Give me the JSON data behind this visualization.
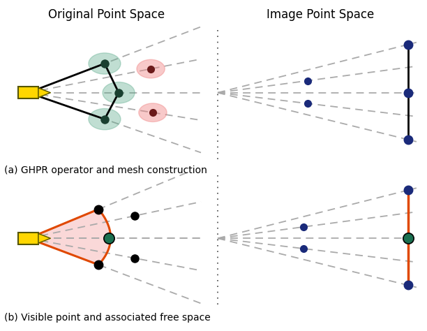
{
  "fig_width": 6.12,
  "fig_height": 4.74,
  "bg_color": "#ffffff",
  "title_left": "Original Point Space",
  "title_right": "Image Point Space",
  "caption_a": "(a) GHPR operator and mesh construction",
  "caption_b": "(b) Visible point and associated free space",
  "camera_color": "#FFD700",
  "camera_edge_color": "#555500",
  "green_halo_color": "#5aaa8a",
  "green_halo_alpha": 0.38,
  "pink_halo_color": "#f08080",
  "pink_halo_alpha": 0.42,
  "dark_green_dot": "#1a4030",
  "dark_red_dot": "#6b1a1a",
  "blue_dot": "#1a2a7a",
  "black_dot": "#111111",
  "teal_dot": "#1a7050",
  "orange_color": "#e04800",
  "dashed_color": "#aaaaaa",
  "divider_color": "#444444"
}
